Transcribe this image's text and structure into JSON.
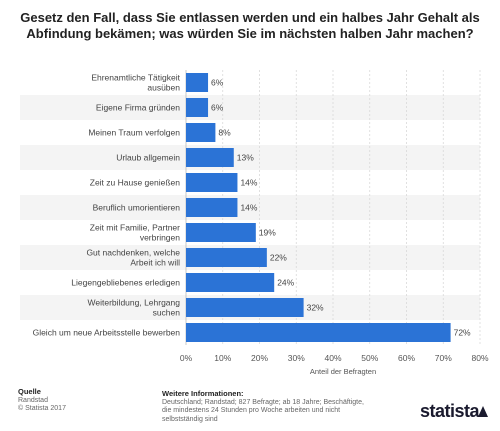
{
  "page_title": "Gesetz den Fall, dass Sie entlassen werden und ein halbes Jahr Gehalt als Abfindung bekämen; was würden Sie im nächsten halben Jahr machen?",
  "chart_data": {
    "type": "bar",
    "orientation": "horizontal",
    "title": "Gesetz den Fall, dass Sie entlassen werden und ein halbes Jahr Gehalt als Abfindung bekämen; was würden Sie im nächsten halben Jahr machen?",
    "categories": [
      [
        "Ehrenamtliche Tätigkeit",
        "ausüben"
      ],
      [
        "Eigene Firma gründen"
      ],
      [
        "Meinen Traum verfolgen"
      ],
      [
        "Urlaub allgemein"
      ],
      [
        "Zeit zu Hause genießen"
      ],
      [
        "Beruflich umorientieren"
      ],
      [
        "Zeit mit Familie, Partner",
        "verbringen"
      ],
      [
        "Gut nachdenken, welche",
        "Arbeit ich will"
      ],
      [
        "Liegengebliebenes erledigen"
      ],
      [
        "Weiterbildung, Lehrgang",
        "suchen"
      ],
      [
        "Gleich um neue Arbeitsstelle bewerben"
      ]
    ],
    "values": [
      6,
      6,
      8,
      13,
      14,
      14,
      19,
      22,
      24,
      32,
      72
    ],
    "value_labels": [
      "6%",
      "6%",
      "8%",
      "13%",
      "14%",
      "14%",
      "19%",
      "22%",
      "24%",
      "32%",
      "72%"
    ],
    "xlim": [
      0,
      80
    ],
    "xticks": [
      0,
      10,
      20,
      30,
      40,
      50,
      60,
      70,
      80
    ],
    "xtick_labels": [
      "0%",
      "10%",
      "20%",
      "30%",
      "40%",
      "50%",
      "60%",
      "70%",
      "80%"
    ],
    "xlabel": "Anteil der Befragten",
    "ylabel": "",
    "bar_color": "#2b73d6",
    "stripe_color": "#f4f4f4",
    "grid": true
  },
  "footer": {
    "source_heading": "Quelle",
    "source_lines": [
      "Randstad",
      "© Statista 2017"
    ],
    "info_heading": "Weitere Informationen:",
    "info_lines": [
      "Deutschland; Randstad; 827 Befragte; ab 18 Jahre; Beschäftigte,",
      "die mindestens 24 Stunden pro Woche arbeiten und nicht",
      "selbstständig sind"
    ],
    "brand": "statista"
  }
}
